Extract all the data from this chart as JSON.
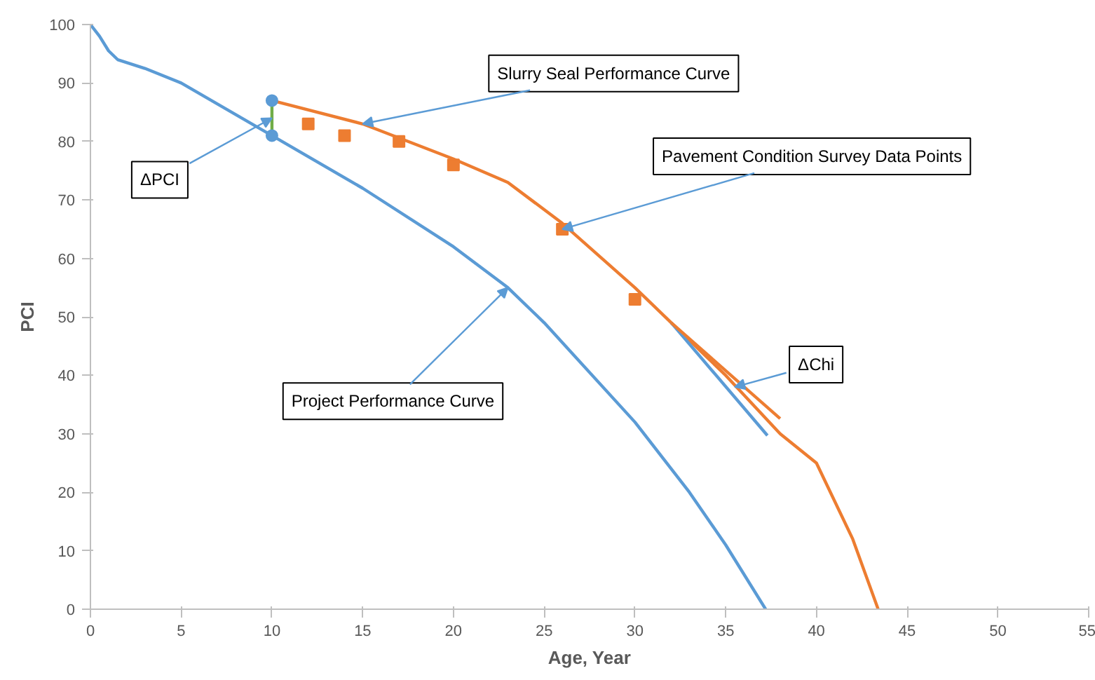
{
  "chart_data": {
    "type": "line",
    "xlabel": "Age, Year",
    "ylabel": "PCI",
    "xlim": [
      0,
      55
    ],
    "ylim": [
      0,
      100
    ],
    "xticks": [
      0,
      5,
      10,
      15,
      20,
      25,
      30,
      35,
      40,
      45,
      50,
      55
    ],
    "yticks": [
      0,
      10,
      20,
      30,
      40,
      50,
      60,
      70,
      80,
      90,
      100
    ],
    "grid": false,
    "series": [
      {
        "color": "#5b9bd5",
        "x": [
          0,
          0.5,
          1,
          1.5,
          3,
          5,
          10,
          15,
          20,
          23,
          25,
          30,
          33,
          35,
          37.2
        ],
        "values": [
          100,
          98,
          95.5,
          94,
          92.5,
          90,
          81,
          72,
          62,
          55,
          49,
          32,
          20,
          11,
          0
        ]
      },
      {
        "color": "#ed7d31",
        "x": [
          10,
          15,
          20,
          23,
          26,
          30,
          32,
          35,
          38,
          40,
          42,
          43.4
        ],
        "values": [
          87,
          83,
          77,
          73,
          66,
          55,
          49,
          40,
          30,
          25,
          12,
          0
        ]
      },
      {
        "type": "line",
        "color": "#5b9bd5",
        "x": [
          32,
          37.3
        ],
        "values": [
          49,
          29.7
        ]
      },
      {
        "type": "line",
        "color": "#ed7d31",
        "x": [
          32,
          38
        ],
        "values": [
          49,
          32.6
        ]
      },
      {
        "type": "line",
        "color": "#70ad47",
        "x": [
          10,
          10
        ],
        "values": [
          81,
          87
        ]
      },
      {
        "type": "scatter",
        "marker": "circle",
        "color": "#5b9bd5",
        "x": [
          10,
          10
        ],
        "values": [
          81,
          87
        ]
      },
      {
        "type": "scatter",
        "marker": "square",
        "color": "#ed7d31",
        "x": [
          12,
          14,
          17,
          20,
          26,
          30
        ],
        "values": [
          83,
          81,
          80,
          76,
          65,
          53
        ]
      }
    ],
    "annotations": [
      {
        "text": "ΔPCI",
        "x": 10,
        "y": 84
      },
      {
        "text": "Slurry Seal Performance Curve",
        "x": 15,
        "y": 83
      },
      {
        "text": "Pavement Condition Survey Data Points",
        "x": 26,
        "y": 65
      },
      {
        "text": "Project Performance Curve",
        "x": 23,
        "y": 55
      },
      {
        "text": "ΔChi",
        "x": 35.5,
        "y": 38
      }
    ]
  }
}
